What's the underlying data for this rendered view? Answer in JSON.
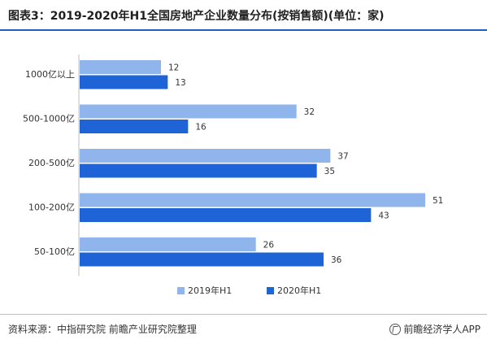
{
  "title": "图表3：2019-2020年H1全国房地产企业数量分布(按销售额)(单位：家)",
  "source": "资料来源：中指研究院 前瞻产业研究院整理",
  "brand": "前瞻经济学人APP",
  "colors": {
    "series1": "#8fb5ec",
    "series2": "#1f64d6",
    "accent": "#1f5fc4"
  },
  "chart_data": {
    "type": "bar",
    "orientation": "horizontal",
    "categories": [
      "1000亿以上",
      "500-1000亿",
      "200-500亿",
      "100-200亿",
      "50-100亿"
    ],
    "series": [
      {
        "name": "2019年H1",
        "values": [
          12,
          32,
          37,
          51,
          26
        ]
      },
      {
        "name": "2020年H1",
        "values": [
          13,
          16,
          35,
          43,
          36
        ]
      }
    ],
    "title": "图表3：2019-2020年H1全国房地产企业数量分布(按销售额)(单位：家)",
    "xlim": [
      0,
      54
    ],
    "grid": false,
    "legend": "bottom-center"
  }
}
